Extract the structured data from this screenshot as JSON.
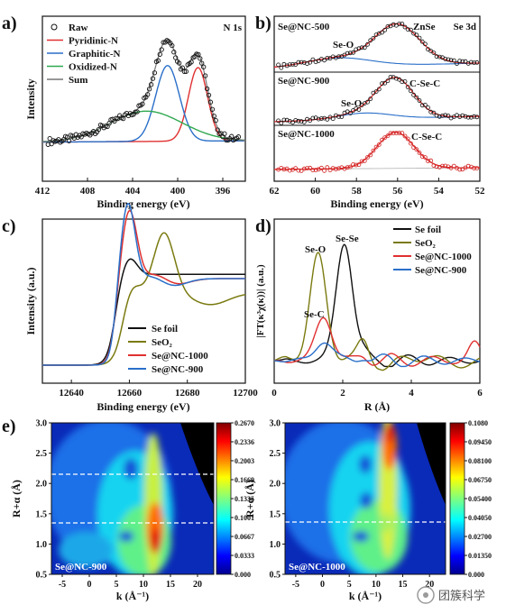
{
  "chart_data": [
    {
      "panel": "a)",
      "type": "line",
      "tag": "N 1s",
      "xlabel": "Binding energy (eV)",
      "ylabel": "Intensity",
      "xlim": [
        412,
        394
      ],
      "x_reversed": true,
      "xticks": [
        "412",
        "408",
        "404",
        "400",
        "396"
      ],
      "legend": [
        "Raw",
        "Pyridinic-N",
        "Graphitic-N",
        "Oxidized-N",
        "Sum"
      ],
      "legend_position": "top-left",
      "series": [
        {
          "name": "Raw",
          "style": "circles",
          "color": "#111111",
          "x": [
            411,
            410,
            409,
            408,
            407,
            406,
            405,
            404,
            403,
            402,
            401.5,
            401,
            400.5,
            400,
            399.5,
            399,
            398.6,
            398.2,
            397.8,
            397.4,
            397,
            396.5,
            396,
            395,
            394
          ],
          "y": [
            0.03,
            0.04,
            0.05,
            0.07,
            0.1,
            0.15,
            0.22,
            0.31,
            0.43,
            0.6,
            0.78,
            0.92,
            0.97,
            0.86,
            0.66,
            0.6,
            0.7,
            0.72,
            0.64,
            0.46,
            0.3,
            0.2,
            0.14,
            0.09,
            0.07
          ]
        },
        {
          "name": "Pyridinic-N",
          "color": "#e03030",
          "center": 398.2,
          "height": 0.68,
          "width": 0.85
        },
        {
          "name": "Graphitic-N",
          "color": "#2a6fc9",
          "center": 400.9,
          "height": 0.7,
          "width": 1.05
        },
        {
          "name": "Oxidized-N",
          "color": "#2fa84f",
          "center": 402.8,
          "height": 0.28,
          "width": 3.2
        },
        {
          "name": "Sum",
          "color": "#777777"
        }
      ]
    },
    {
      "panel": "b)",
      "type": "line",
      "tag": "Se 3d",
      "xlabel": "Binding energy (eV)",
      "xlim": [
        62,
        52
      ],
      "x_reversed": true,
      "xticks": [
        "62",
        "60",
        "58",
        "56",
        "54",
        "52"
      ],
      "rows": [
        {
          "sample": "Se@NC-500",
          "peaks": [
            {
              "label": "Se-O",
              "center": 58.9
            },
            {
              "label": "ZnSe",
              "center": 56.0
            }
          ]
        },
        {
          "sample": "Se@NC-900",
          "peaks": [
            {
              "label": "Se-O",
              "center": 57.6
            },
            {
              "label": "C-Se-C",
              "center": 56.1
            }
          ]
        },
        {
          "sample": "Se@NC-1000",
          "peaks": [
            {
              "label": "C-Se-C",
              "center": 56.1
            }
          ]
        }
      ]
    },
    {
      "panel": "c)",
      "type": "line",
      "xlabel": "Binding energy (eV)",
      "ylabel": "Intensity (a.u.)",
      "xlim": [
        12630,
        12700
      ],
      "xticks": [
        "12640",
        "12660",
        "12680",
        "12700"
      ],
      "legend_position": "bottom-center",
      "series": [
        {
          "name": "Se foil",
          "color": "#111111"
        },
        {
          "name": "SeO₂",
          "color": "#7a7a10"
        },
        {
          "name": "Se@NC-1000",
          "color": "#e03030"
        },
        {
          "name": "Se@NC-900",
          "color": "#2a6fc9"
        }
      ]
    },
    {
      "panel": "d)",
      "type": "line",
      "xlabel": "R (Å)",
      "xlim": [
        0,
        6
      ],
      "xticks": [
        "0",
        "2",
        "4",
        "6"
      ],
      "annotations": [
        "Se-O",
        "Se-Se",
        "Se-C"
      ],
      "legend_position": "top-right",
      "series": [
        {
          "name": "Se foil",
          "color": "#111111",
          "peak_R": 2.05,
          "peak_height": 0.83
        },
        {
          "name": "SeO₂",
          "color": "#7a7a10",
          "peak_R": 1.28,
          "peak_height": 0.76
        },
        {
          "name": "Se@NC-1000",
          "color": "#e03030",
          "peak_R": 1.45,
          "peak_height": 0.31
        },
        {
          "name": "Se@NC-900",
          "color": "#2a6fc9",
          "peak_R": 1.45,
          "peak_height": 0.14
        }
      ]
    },
    {
      "panel": "e)",
      "type": "heatmap",
      "maps": [
        {
          "sample": "Se@NC-900",
          "xlabel": "k (Å⁻¹)",
          "ylabel": "R+α (Å)",
          "xlim": [
            -7,
            23
          ],
          "ylim": [
            0.5,
            3.0
          ],
          "xticks": [
            "-5",
            "0",
            "5",
            "10",
            "15",
            "20"
          ],
          "yticks": [
            "0.5",
            "1.0",
            "1.5",
            "2.0",
            "2.5",
            "3.0"
          ],
          "guide_lines_R": [
            1.35,
            2.15
          ],
          "colorbar_ticks": [
            "0.2670",
            "0.2336",
            "0.2003",
            "0.1669",
            "0.1335",
            "0.1001",
            "0.0667",
            "0.0333",
            "0.000"
          ]
        },
        {
          "sample": "Se@NC-1000",
          "xlabel": "k (Å⁻¹)",
          "ylabel": "R+α (Å)",
          "xlim": [
            -7,
            23
          ],
          "ylim": [
            0.5,
            3.0
          ],
          "xticks": [
            "-5",
            "0",
            "5",
            "10",
            "15",
            "20"
          ],
          "yticks": [
            "0.5",
            "1.0",
            "1.5",
            "2.0",
            "2.5",
            "3.0"
          ],
          "guide_lines_R": [
            1.35
          ],
          "colorbar_ticks": [
            "0.1080",
            "0.09450",
            "0.08100",
            "0.06750",
            "0.05400",
            "0.04050",
            "0.02700",
            "0.01350",
            "0.000"
          ]
        }
      ]
    }
  ],
  "labels": {
    "a": {
      "panel": "a)",
      "tag": "N 1s",
      "xlabel": "Binding energy (eV)",
      "ylabel": "Intensity"
    },
    "b": {
      "panel": "b)",
      "tag": "Se 3d",
      "xlabel": "Binding energy (eV)",
      "row1": "Se@NC-500",
      "row2": "Se@NC-900",
      "row3": "Se@NC-1000",
      "seo1": "Se-O",
      "znse": "ZnSe",
      "seo2": "Se-O",
      "csec2": "C-Se-C",
      "csec3": "C-Se-C"
    },
    "c": {
      "panel": "c)",
      "xlabel": "Binding energy (eV)",
      "ylabel": "Intensity (a.u.)"
    },
    "d": {
      "panel": "d)",
      "xlabel": "R (Å)",
      "ylabel": "|FT(κ³χ(κ))| (a.u.)",
      "seo": "Se-O",
      "sese": "Se-Se",
      "sec": "Se-C"
    },
    "e": {
      "panel": "e)",
      "xlabel": "k (Å⁻¹)",
      "ylabel": "R+α (Å)"
    }
  },
  "watermark": "团簇科学"
}
